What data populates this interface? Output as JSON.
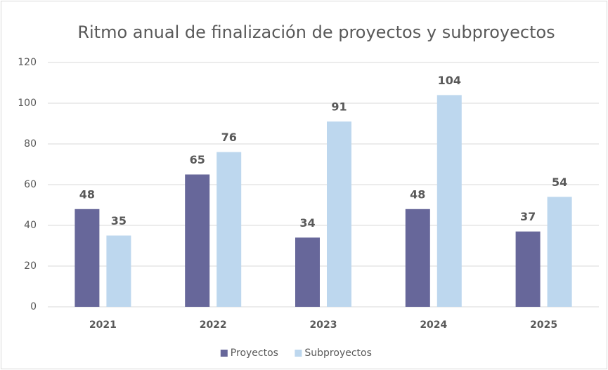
{
  "chart_data": {
    "type": "bar",
    "title": "Ritmo anual de finalización de proyectos y subproyectos",
    "categories": [
      "2021",
      "2022",
      "2023",
      "2024",
      "2025"
    ],
    "series": [
      {
        "name": "Proyectos",
        "color": "#67679a",
        "values": [
          48,
          65,
          34,
          48,
          37
        ]
      },
      {
        "name": "Subproyectos",
        "color": "#bdd7ee",
        "values": [
          35,
          76,
          91,
          104,
          54
        ]
      }
    ],
    "ylim": [
      0,
      120
    ],
    "yticks": [
      0,
      20,
      40,
      60,
      80,
      100,
      120
    ],
    "grid": true,
    "legend": "bottom"
  }
}
